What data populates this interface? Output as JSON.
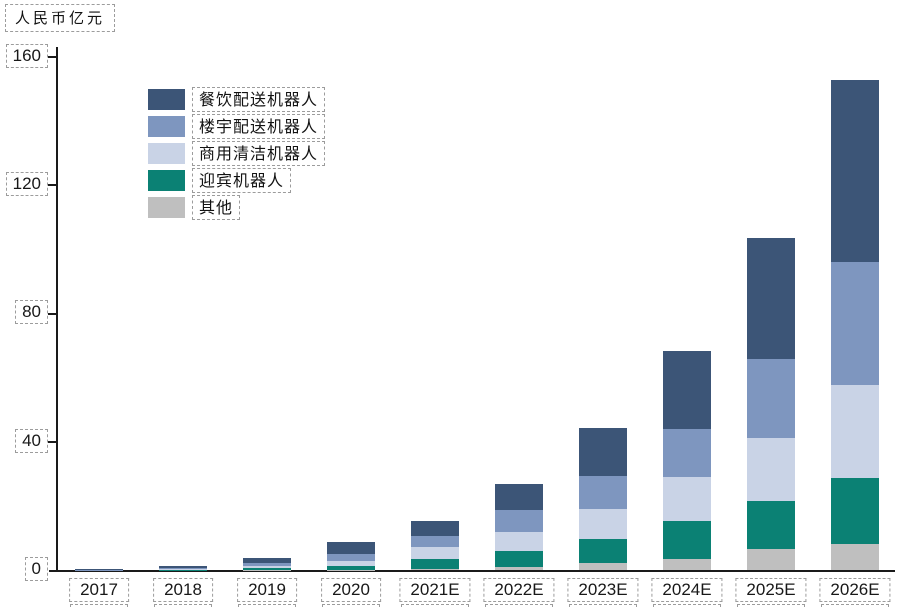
{
  "unit_label": "人民币亿元",
  "chart_data": {
    "type": "bar",
    "stacked": true,
    "title": "",
    "ylabel": "人民币亿元",
    "xlabel": "",
    "categories": [
      "2017",
      "2018",
      "2019",
      "2020",
      "2021E",
      "2022E",
      "2023E",
      "2024E",
      "2025E",
      "2026E"
    ],
    "series_bottom_to_top": [
      {
        "name": "其他",
        "color": "#BFBFBF",
        "values": [
          0.0,
          0.1,
          0.1,
          0.2,
          0.4,
          1.2,
          2.2,
          3.7,
          6.8,
          8.3
        ]
      },
      {
        "name": "迎宾机器人",
        "color": "#0B8174",
        "values": [
          0.1,
          0.2,
          0.6,
          1.2,
          3.1,
          4.9,
          7.7,
          11.7,
          14.8,
          20.6
        ]
      },
      {
        "name": "商用清洁机器人",
        "color": "#C9D3E6",
        "values": [
          0.1,
          0.2,
          0.6,
          1.5,
          3.7,
          5.8,
          9.2,
          13.8,
          19.7,
          28.9
        ]
      },
      {
        "name": "楼宇配送机器人",
        "color": "#7E96BF",
        "values": [
          0.1,
          0.4,
          0.9,
          2.2,
          3.4,
          6.8,
          10.2,
          14.8,
          24.6,
          38.2
        ]
      },
      {
        "name": "餐饮配送机器人",
        "color": "#3C5577",
        "values": [
          0.1,
          0.4,
          1.8,
          3.7,
          4.9,
          8.3,
          15.1,
          24.3,
          37.8,
          56.9
        ]
      }
    ],
    "totals": [
      0.4,
      1.3,
      4.0,
      8.8,
      15.5,
      27.0,
      44.4,
      68.3,
      103.7,
      152.9
    ],
    "legend": [
      {
        "label": "餐饮配送机器人",
        "color": "#3C5577"
      },
      {
        "label": "楼宇配送机器人",
        "color": "#7E96BF"
      },
      {
        "label": "商用清洁机器人",
        "color": "#C9D3E6"
      },
      {
        "label": "迎宾机器人",
        "color": "#0B8174"
      },
      {
        "label": "其他",
        "color": "#BFBFBF"
      }
    ],
    "yticks": [
      0,
      40,
      80,
      120,
      160
    ],
    "ylim": [
      0,
      160
    ],
    "grid": false,
    "legend_position": "upper-left-inside"
  }
}
